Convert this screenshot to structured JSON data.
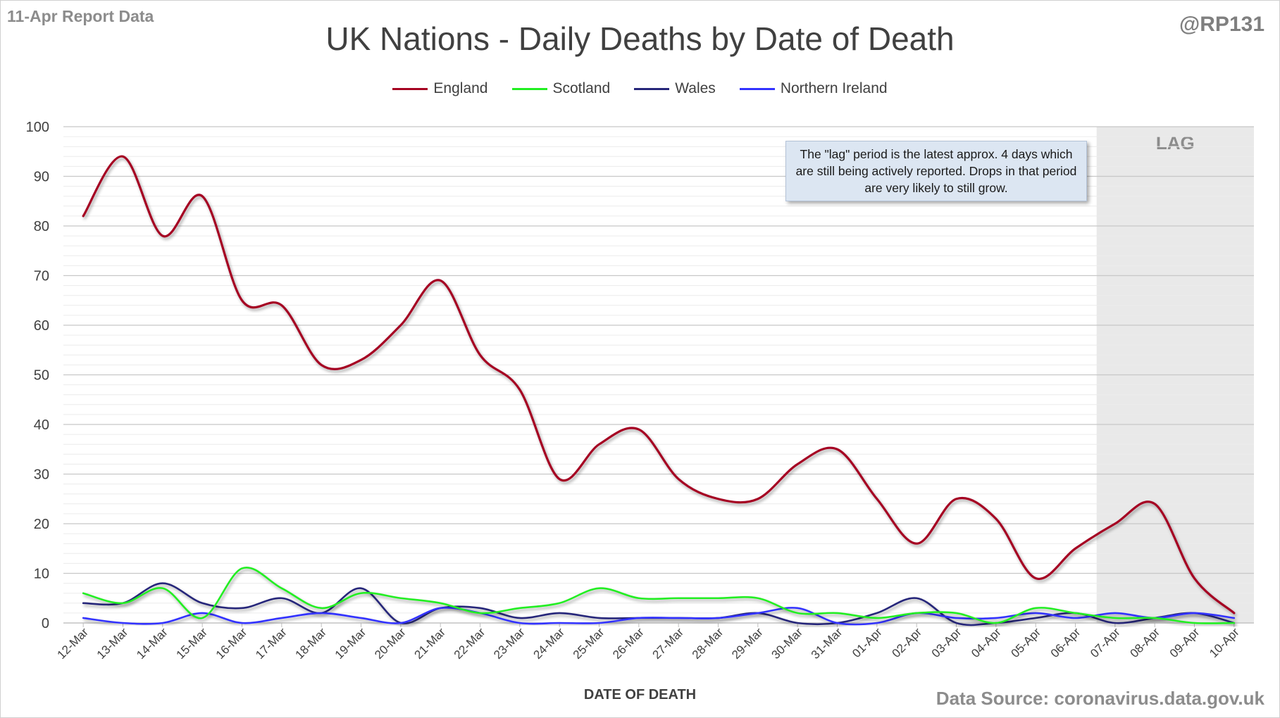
{
  "header": {
    "report_tag": "11-Apr Report Data",
    "author": "@RP131",
    "source": "Data Source: coronavirus.data.gov.uk"
  },
  "note": "The \"lag\" period is the latest approx. 4 days which are still being actively reported. Drops in that period are very likely to still grow.",
  "chart_data": {
    "type": "line",
    "title": "UK Nations - Daily Deaths by Date of Death",
    "xlabel": "DATE OF DEATH",
    "ylabel": "",
    "ylim": [
      0,
      100
    ],
    "yticks": [
      0,
      10,
      20,
      30,
      40,
      50,
      60,
      70,
      80,
      90,
      100
    ],
    "grid": true,
    "legend_position": "top-center",
    "lag_label": "LAG",
    "lag_start": "07-Apr",
    "categories": [
      "12-Mar",
      "13-Mar",
      "14-Mar",
      "15-Mar",
      "16-Mar",
      "17-Mar",
      "18-Mar",
      "19-Mar",
      "20-Mar",
      "21-Mar",
      "22-Mar",
      "23-Mar",
      "24-Mar",
      "25-Mar",
      "26-Mar",
      "27-Mar",
      "28-Mar",
      "29-Mar",
      "30-Mar",
      "31-Mar",
      "01-Apr",
      "02-Apr",
      "03-Apr",
      "04-Apr",
      "05-Apr",
      "06-Apr",
      "07-Apr",
      "08-Apr",
      "09-Apr",
      "10-Apr"
    ],
    "series": [
      {
        "name": "England",
        "color": "#a50021",
        "values": [
          82,
          94,
          78,
          86,
          65,
          64,
          52,
          53,
          60,
          69,
          54,
          47,
          29,
          36,
          39,
          29,
          25,
          25,
          32,
          35,
          25,
          16,
          25,
          21,
          9,
          15,
          20,
          24,
          9,
          2
        ]
      },
      {
        "name": "Scotland",
        "color": "#22ee22",
        "values": [
          6,
          4,
          7,
          1,
          11,
          7,
          3,
          6,
          5,
          4,
          2,
          3,
          4,
          7,
          5,
          5,
          5,
          5,
          2,
          2,
          1,
          2,
          2,
          0,
          3,
          2,
          1,
          1,
          0,
          0
        ]
      },
      {
        "name": "Wales",
        "color": "#26267a",
        "values": [
          4,
          4,
          8,
          4,
          3,
          5,
          2,
          7,
          0,
          3,
          3,
          1,
          2,
          1,
          1,
          1,
          1,
          2,
          0,
          0,
          2,
          5,
          0,
          0,
          1,
          2,
          0,
          1,
          2,
          0
        ]
      },
      {
        "name": "Northern Ireland",
        "color": "#3333ff",
        "values": [
          1,
          0,
          0,
          2,
          0,
          1,
          2,
          1,
          0,
          3,
          2,
          0,
          0,
          0,
          1,
          1,
          1,
          2,
          3,
          0,
          0,
          2,
          1,
          1,
          2,
          1,
          2,
          1,
          2,
          1
        ]
      }
    ]
  }
}
